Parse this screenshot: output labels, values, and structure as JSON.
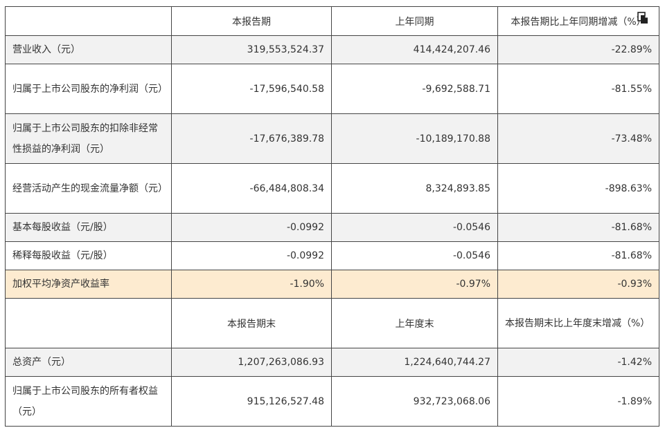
{
  "table": {
    "header": {
      "col1": "本报告期",
      "col2": "上年同期",
      "col3": "本报告期比上年同期增减（%）"
    },
    "rows": [
      {
        "label": "营业收入（元）",
        "current": "319,553,524.37",
        "previous": "414,424,207.46",
        "change": "-22.89%"
      },
      {
        "label": "归属于上市公司股东的净利润（元）",
        "current": "-17,596,540.58",
        "previous": "-9,692,588.71",
        "change": "-81.55%"
      },
      {
        "label": "归属于上市公司股东的扣除非经常性损益的净利润（元）",
        "current": "-17,676,389.78",
        "previous": "-10,189,170.88",
        "change": "-73.48%"
      },
      {
        "label": "经营活动产生的现金流量净额（元）",
        "current": "-66,484,808.34",
        "previous": "8,324,893.85",
        "change": "-898.63%"
      },
      {
        "label": "基本每股收益（元/股）",
        "current": "-0.0992",
        "previous": "-0.0546",
        "change": "-81.68%"
      },
      {
        "label": "稀释每股收益（元/股）",
        "current": "-0.0992",
        "previous": "-0.0546",
        "change": "-81.68%"
      },
      {
        "label": "加权平均净资产收益率",
        "current": "-1.90%",
        "previous": "-0.97%",
        "change": "-0.93%"
      }
    ],
    "header2": {
      "col1": "本报告期末",
      "col2": "上年度末",
      "col3": "本报告期末比上年度末增减（%）"
    },
    "rows2": [
      {
        "label": "总资产（元）",
        "current": "1,207,263,086.93",
        "previous": "1,224,640,744.27",
        "change": "-1.42%"
      },
      {
        "label": "归属于上市公司股东的所有者权益（元）",
        "current": "915,126,527.48",
        "previous": "932,723,068.06",
        "change": "-1.89%"
      }
    ]
  },
  "colors": {
    "row_shade": "#f2f2f2",
    "row_highlight": "#fdebd0",
    "border": "#444444"
  },
  "icons": {
    "copy": "copy-icon"
  }
}
